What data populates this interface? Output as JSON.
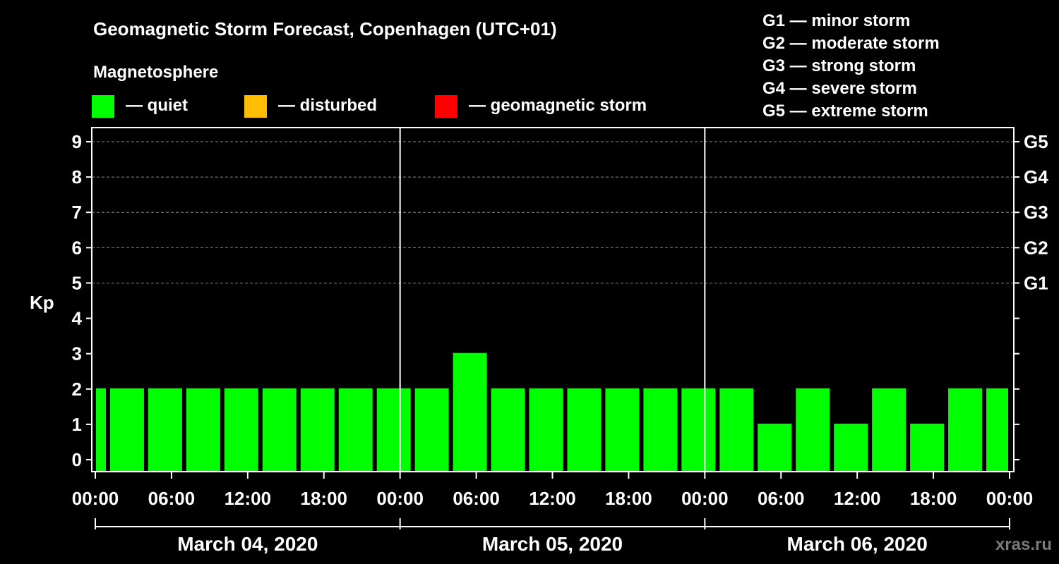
{
  "title": "Geomagnetic Storm Forecast, Copenhagen (UTC+01)",
  "legend": {
    "heading": "Magnetosphere",
    "items": [
      {
        "color": "#00ff00",
        "label": "— quiet"
      },
      {
        "color": "#ffbf00",
        "label": "— disturbed"
      },
      {
        "color": "#ff0000",
        "label": "— geomagnetic storm"
      }
    ]
  },
  "scale_key": [
    "G1 — minor storm",
    "G2 — moderate storm",
    "G3 — strong storm",
    "G4 — severe storm",
    "G5 — extreme storm"
  ],
  "watermark": "xras.ru",
  "chart_data": {
    "type": "bar",
    "title": "Geomagnetic Storm Forecast, Copenhagen (UTC+01)",
    "ylabel": "Kp",
    "ylim": [
      0,
      9
    ],
    "yticks": [
      0,
      1,
      2,
      3,
      4,
      5,
      6,
      7,
      8,
      9
    ],
    "x_range_hours": [
      0,
      72
    ],
    "bar_interval_hours": 3,
    "first_bar_start_hours": -2,
    "xtick_labels": [
      "00:00",
      "06:00",
      "12:00",
      "18:00",
      "00:00",
      "06:00",
      "12:00",
      "18:00",
      "00:00",
      "06:00",
      "12:00",
      "18:00",
      "00:00"
    ],
    "days": [
      "March 04, 2020",
      "March 05, 2020",
      "March 06, 2020"
    ],
    "right_axis": [
      {
        "kp": 5,
        "label": "G1"
      },
      {
        "kp": 6,
        "label": "G2"
      },
      {
        "kp": 7,
        "label": "G3"
      },
      {
        "kp": 8,
        "label": "G4"
      },
      {
        "kp": 9,
        "label": "G5"
      }
    ],
    "values": [
      2,
      2,
      2,
      2,
      2,
      2,
      2,
      2,
      2,
      2,
      3,
      2,
      2,
      2,
      2,
      2,
      2,
      2,
      1,
      2,
      1,
      2,
      1,
      2,
      2
    ],
    "color_thresholds": {
      "quiet_below": 4,
      "disturbed_below": 5
    },
    "colors": {
      "quiet": "#00ff00",
      "disturbed": "#ffbf00",
      "storm": "#ff0000"
    },
    "grid": true
  }
}
